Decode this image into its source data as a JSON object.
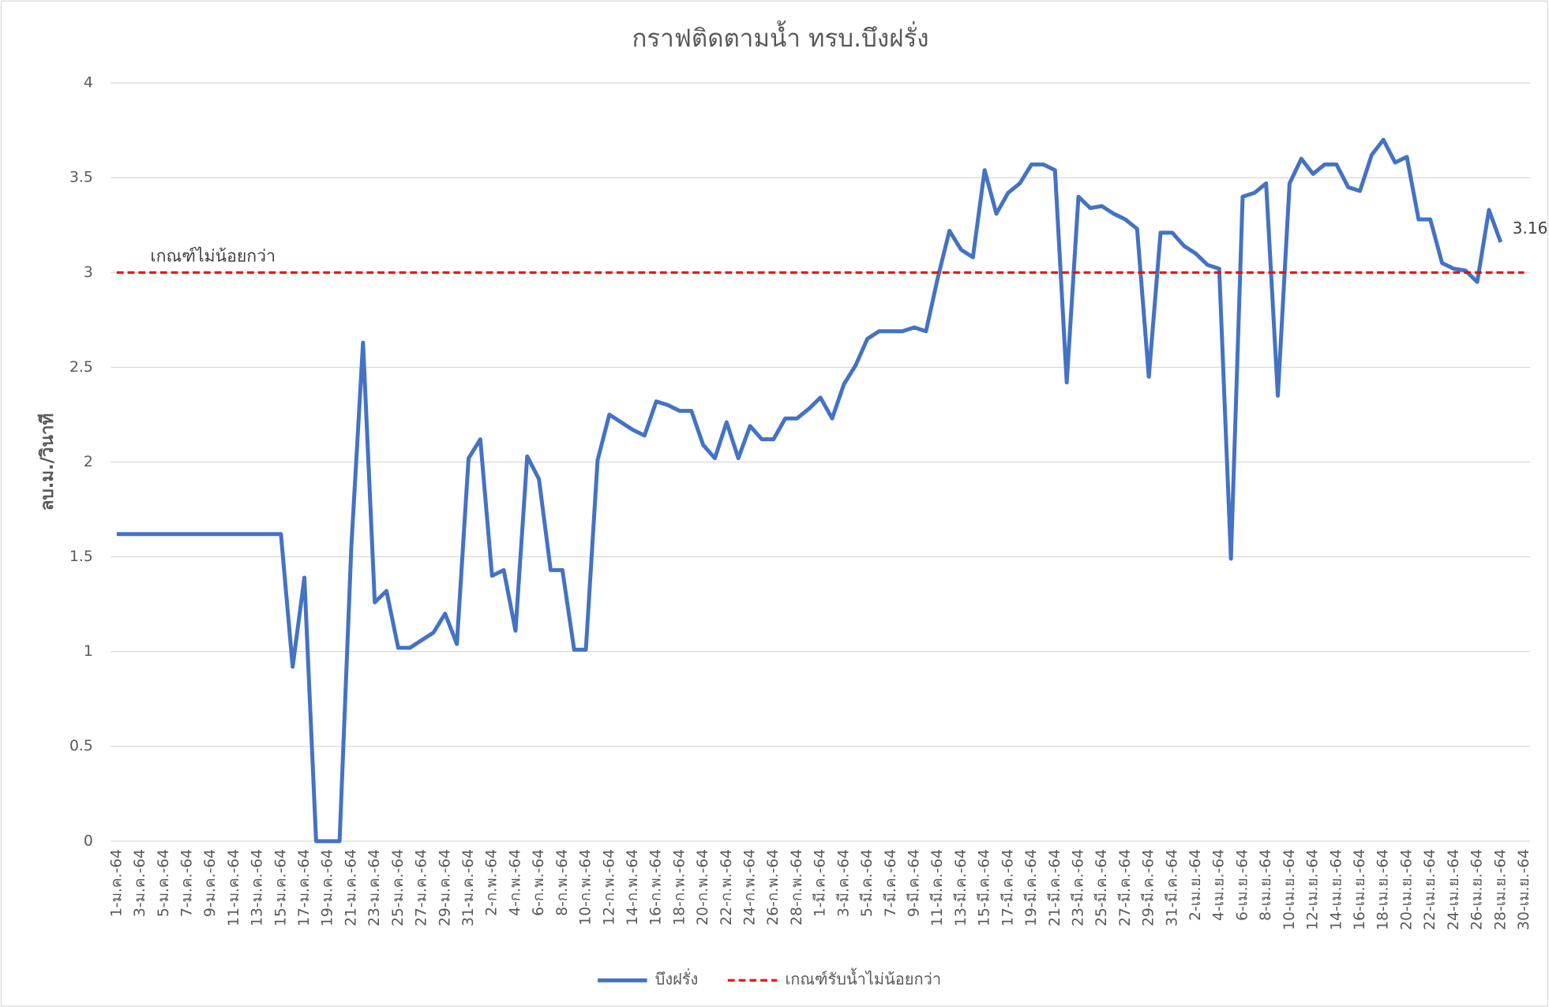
{
  "chart_data": {
    "type": "line",
    "title": "กราฟติดตามน้ำ ทรบ.บึงฝรั่ง",
    "y_label": "ลบ.ม./วินาที",
    "annotation": "เกณฑ์ไม่น้อยกว่า",
    "categories": [
      "1-ม.ค.-64",
      null,
      "3-ม.ค.-64",
      null,
      "5-ม.ค.-64",
      null,
      "7-ม.ค.-64",
      null,
      "9-ม.ค.-64",
      null,
      "11-ม.ค.-64",
      null,
      "13-ม.ค.-64",
      null,
      "15-ม.ค.-64",
      null,
      "17-ม.ค.-64",
      null,
      "19-ม.ค.-64",
      null,
      "21-ม.ค.-64",
      null,
      "23-ม.ค.-64",
      null,
      "25-ม.ค.-64",
      null,
      "27-ม.ค.-64",
      null,
      "29-ม.ค.-64",
      null,
      "31-ม.ค.-64",
      null,
      "2-ก.พ.-64",
      null,
      "4-ก.พ.-64",
      null,
      "6-ก.พ.-64",
      null,
      "8-ก.พ.-64",
      null,
      "10-ก.พ.-64",
      null,
      "12-ก.พ.-64",
      null,
      "14-ก.พ.-64",
      null,
      "16-ก.พ.-64",
      null,
      "18-ก.พ.-64",
      null,
      "20-ก.พ.-64",
      null,
      "22-ก.พ.-64",
      null,
      "24-ก.พ.-64",
      null,
      "26-ก.พ.-64",
      null,
      "28-ก.พ.-64",
      null,
      "1-มี.ค.-64",
      null,
      "3-มี.ค.-64",
      null,
      "5-มี.ค.-64",
      null,
      "7-มี.ค.-64",
      null,
      "9-มี.ค.-64",
      null,
      "11-มี.ค.-64",
      null,
      "13-มี.ค.-64",
      null,
      "15-มี.ค.-64",
      null,
      "17-มี.ค.-64",
      null,
      "19-มี.ค.-64",
      null,
      "21-มี.ค.-64",
      null,
      "23-มี.ค.-64",
      null,
      "25-มี.ค.-64",
      null,
      "27-มี.ค.-64",
      null,
      "29-มี.ค.-64",
      null,
      "31-มี.ค.-64",
      null,
      "2-เม.ย.-64",
      null,
      "4-เม.ย.-64",
      null,
      "6-เม.ย.-64",
      null,
      "8-เม.ย.-64",
      null,
      "10-เม.ย.-64",
      null,
      "12-เม.ย.-64",
      null,
      "14-เม.ย.-64",
      null,
      "16-เม.ย.-64",
      null,
      "18-เม.ย.-64",
      null,
      "20-เม.ย.-64",
      null,
      "22-เม.ย.-64",
      null,
      "24-เม.ย.-64",
      null,
      "26-เม.ย.-64",
      null,
      "28-เม.ย.-64",
      null,
      "30-เม.ย.-64"
    ],
    "series": [
      {
        "name": "บึงฝรั่ง",
        "color": "#4472c4",
        "dash": false,
        "label_last": true,
        "values": [
          1.62,
          1.62,
          1.62,
          1.62,
          1.62,
          1.62,
          1.62,
          1.62,
          1.62,
          1.62,
          1.62,
          1.62,
          1.62,
          1.62,
          1.62,
          0.92,
          1.39,
          0,
          0,
          0,
          1.55,
          2.63,
          1.26,
          1.32,
          1.02,
          1.02,
          1.06,
          1.1,
          1.2,
          1.04,
          2.02,
          2.12,
          1.4,
          1.43,
          1.11,
          2.03,
          1.91,
          1.43,
          1.43,
          1.01,
          1.01,
          2.01,
          2.25,
          2.21,
          2.17,
          2.14,
          2.32,
          2.3,
          2.27,
          2.27,
          2.09,
          2.02,
          2.21,
          2.02,
          2.19,
          2.12,
          2.12,
          2.23,
          2.23,
          2.28,
          2.34,
          2.23,
          2.41,
          2.51,
          2.65,
          2.69,
          2.69,
          2.69,
          2.71,
          2.69,
          2.97,
          3.22,
          3.12,
          3.08,
          3.54,
          3.31,
          3.42,
          3.47,
          3.57,
          3.57,
          3.54,
          2.42,
          3.4,
          3.34,
          3.35,
          3.31,
          3.28,
          3.23,
          2.45,
          3.21,
          3.21,
          3.14,
          3.1,
          3.04,
          3.02,
          1.49,
          3.4,
          3.42,
          3.47,
          2.35,
          3.47,
          3.6,
          3.52,
          3.57,
          3.57,
          3.45,
          3.43,
          3.62,
          3.7,
          3.58,
          3.61,
          3.28,
          3.28,
          3.05,
          3.02,
          3.01,
          2.95,
          3.33,
          3.16,
          null,
          null
        ]
      },
      {
        "name": "เกณฑ์รับน้ำไม่น้อยกว่า",
        "color": "#ff0000",
        "dash": true,
        "label_last": false,
        "values": [
          3,
          3,
          3,
          3,
          3,
          3,
          3,
          3,
          3,
          3,
          3,
          3,
          3,
          3,
          3,
          3,
          3,
          3,
          3,
          3,
          3,
          3,
          3,
          3,
          3,
          3,
          3,
          3,
          3,
          3,
          3,
          3,
          3,
          3,
          3,
          3,
          3,
          3,
          3,
          3,
          3,
          3,
          3,
          3,
          3,
          3,
          3,
          3,
          3,
          3,
          3,
          3,
          3,
          3,
          3,
          3,
          3,
          3,
          3,
          3,
          3,
          3,
          3,
          3,
          3,
          3,
          3,
          3,
          3,
          3,
          3,
          3,
          3,
          3,
          3,
          3,
          3,
          3,
          3,
          3,
          3,
          3,
          3,
          3,
          3,
          3,
          3,
          3,
          3,
          3,
          3,
          3,
          3,
          3,
          3,
          3,
          3,
          3,
          3,
          3,
          3,
          3,
          3,
          3,
          3,
          3,
          3,
          3,
          3,
          3,
          3,
          3,
          3,
          3,
          3,
          3,
          3,
          3,
          3,
          3,
          3
        ]
      }
    ],
    "ylim": [
      0,
      4
    ],
    "yticks": [
      0,
      0.5,
      1,
      1.5,
      2,
      2.5,
      3,
      3.5,
      4
    ],
    "grid": true,
    "legend": "bottom"
  }
}
